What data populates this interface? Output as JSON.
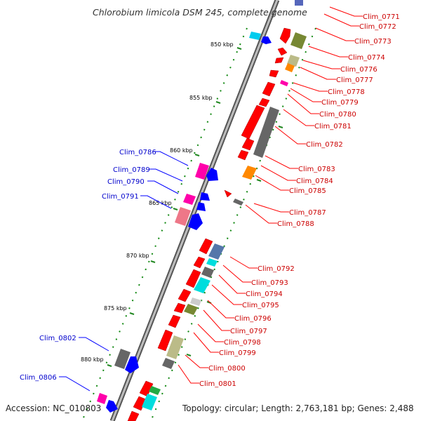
{
  "title": "Chlorobium limicola DSM 245, complete genome",
  "footer": {
    "accession": "Accession: NC_010803",
    "topology": "Topology: circular; Length: 2,763,181 bp; Genes: 2,488"
  },
  "colors": {
    "backbone": "#888888",
    "right_label": "#cc0000",
    "left_label": "#0000cc",
    "tick": "#228822"
  },
  "ticks": [
    "850 kbp",
    "855 kbp",
    "860 kbp",
    "865 kbp",
    "870 kbp",
    "875 kbp",
    "880 kbp"
  ],
  "right_genes": [
    "Clim_0771",
    "Clim_0772",
    "Clim_0773",
    "Clim_0774",
    "Clim_0776",
    "Clim_0777",
    "Clim_0778",
    "Clim_0779",
    "Clim_0780",
    "Clim_0781",
    "Clim_0782",
    "Clim_0783",
    "Clim_0784",
    "Clim_0785",
    "Clim_0787",
    "Clim_0788",
    "Clim_0792",
    "Clim_0793",
    "Clim_0794",
    "Clim_0795",
    "Clim_0796",
    "Clim_0797",
    "Clim_0798",
    "Clim_0799",
    "Clim_0800",
    "Clim_0801"
  ],
  "left_genes": [
    "Clim_0786",
    "Clim_0789",
    "Clim_0790",
    "Clim_0791",
    "Clim_0802",
    "Clim_0806"
  ]
}
